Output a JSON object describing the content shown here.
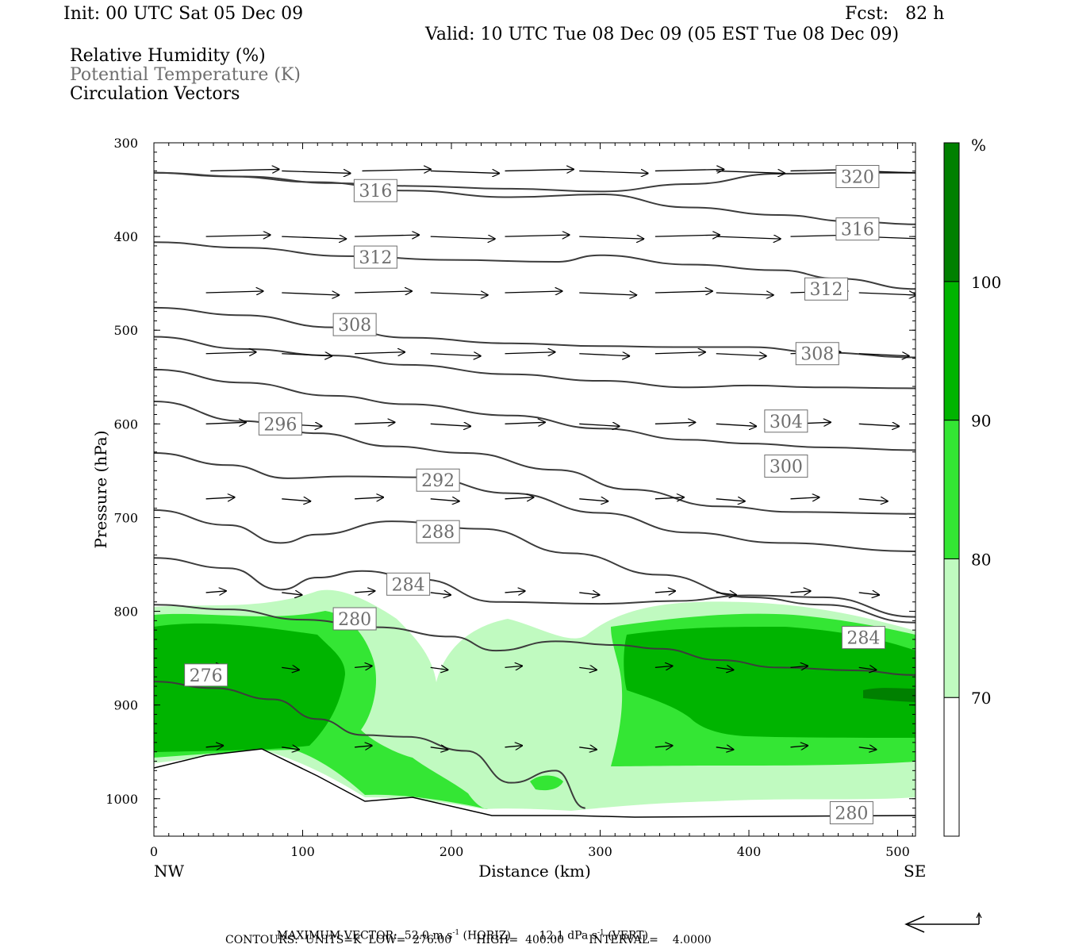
{
  "header": {
    "init": "Init: 00 UTC Sat 05 Dec 09",
    "fcst": "Fcst:   82 h",
    "valid": "Valid: 10 UTC Tue 08 Dec 09 (05 EST Tue 08 Dec 09)",
    "legend_lines": [
      "Relative Humidity (%)",
      "Potential Temperature (K)",
      "Circulation Vectors"
    ]
  },
  "footer": {
    "max_vector_prefix": "MAXIMUM VECTOR:  52.0 m s",
    "max_vector_mid": " (HORIZ)        12.1 dPa s",
    "max_vector_end": " (VERT)",
    "superscript": "-1",
    "contours": "CONTOURS:  UNITS=K  LOW=  276.00       HIGH=  400.00       INTERVAL=    4.0000"
  },
  "chart_data": {
    "type": "cross-section",
    "ylabel": "Pressure (hPa)",
    "xlabel": "Distance (km)",
    "x_left_label": "NW",
    "x_right_label": "SE",
    "xlim": [
      0,
      512
    ],
    "ylim": [
      1040,
      300
    ],
    "x_ticks": [
      0,
      100,
      200,
      300,
      400,
      500
    ],
    "y_ticks": [
      300,
      400,
      500,
      600,
      700,
      800,
      900,
      1000
    ],
    "colorbar": {
      "unit": "%",
      "levels": [
        70,
        80,
        90,
        100
      ],
      "colors": [
        "#ffffff",
        "#c0fac0",
        "#34e634",
        "#00b400",
        "#008000"
      ]
    },
    "theta_contours": [
      {
        "value": 320,
        "points": [
          [
            0,
            332
          ],
          [
            60,
            336
          ],
          [
            120,
            343
          ],
          [
            170,
            346
          ],
          [
            240,
            349
          ],
          [
            300,
            352
          ],
          [
            360,
            344
          ],
          [
            420,
            333
          ],
          [
            470,
            332
          ],
          [
            512,
            332
          ]
        ]
      },
      {
        "value": 316,
        "points": [
          [
            0,
            332
          ],
          [
            50,
            336
          ],
          [
            110,
            342
          ],
          [
            170,
            351
          ],
          [
            240,
            358
          ],
          [
            300,
            355
          ],
          [
            360,
            369
          ],
          [
            420,
            377
          ],
          [
            470,
            384
          ],
          [
            512,
            387
          ]
        ]
      },
      {
        "value": 312,
        "points": [
          [
            0,
            406
          ],
          [
            60,
            412
          ],
          [
            130,
            421
          ],
          [
            200,
            425
          ],
          [
            270,
            427
          ],
          [
            300,
            420
          ],
          [
            360,
            430
          ],
          [
            420,
            436
          ],
          [
            460,
            445
          ],
          [
            512,
            456
          ]
        ]
      },
      {
        "value": 308,
        "points": [
          [
            0,
            476
          ],
          [
            60,
            484
          ],
          [
            120,
            497
          ],
          [
            170,
            508
          ],
          [
            240,
            514
          ],
          [
            300,
            517
          ],
          [
            350,
            518
          ],
          [
            400,
            518
          ],
          [
            450,
            524
          ],
          [
            512,
            529
          ]
        ]
      },
      {
        "value": 304,
        "points": [
          [
            0,
            507
          ],
          [
            60,
            520
          ],
          [
            120,
            527
          ],
          [
            170,
            537
          ],
          [
            240,
            547
          ],
          [
            300,
            554
          ],
          [
            360,
            561
          ],
          [
            400,
            559
          ],
          [
            450,
            561
          ],
          [
            512,
            562
          ]
        ]
      },
      {
        "value": 300,
        "points": [
          [
            0,
            542
          ],
          [
            60,
            556
          ],
          [
            120,
            570
          ],
          [
            170,
            579
          ],
          [
            240,
            591
          ],
          [
            300,
            605
          ],
          [
            360,
            617
          ],
          [
            400,
            621
          ],
          [
            450,
            625
          ],
          [
            512,
            628
          ]
        ]
      },
      {
        "value": 296,
        "points": [
          [
            0,
            576
          ],
          [
            60,
            597
          ],
          [
            110,
            610
          ],
          [
            160,
            624
          ],
          [
            210,
            631
          ],
          [
            270,
            649
          ],
          [
            320,
            670
          ],
          [
            380,
            688
          ],
          [
            430,
            694
          ],
          [
            512,
            696
          ]
        ]
      },
      {
        "value": 292,
        "points": [
          [
            0,
            631
          ],
          [
            50,
            644
          ],
          [
            90,
            658
          ],
          [
            130,
            656
          ],
          [
            180,
            657
          ],
          [
            240,
            674
          ],
          [
            300,
            695
          ],
          [
            360,
            716
          ],
          [
            420,
            727
          ],
          [
            512,
            736
          ]
        ]
      },
      {
        "value": 288,
        "points": [
          [
            0,
            692
          ],
          [
            50,
            708
          ],
          [
            85,
            727
          ],
          [
            110,
            718
          ],
          [
            160,
            704
          ],
          [
            220,
            712
          ],
          [
            280,
            738
          ],
          [
            340,
            761
          ],
          [
            400,
            785
          ],
          [
            450,
            793
          ],
          [
            512,
            812
          ]
        ]
      },
      {
        "value": 284,
        "points": [
          [
            0,
            743
          ],
          [
            50,
            754
          ],
          [
            85,
            777
          ],
          [
            110,
            764
          ],
          [
            140,
            757
          ],
          [
            180,
            766
          ],
          [
            230,
            790
          ],
          [
            300,
            792
          ],
          [
            350,
            789
          ],
          [
            400,
            783
          ],
          [
            450,
            785
          ],
          [
            512,
            806
          ]
        ]
      },
      {
        "value": 280,
        "points": [
          [
            0,
            793
          ],
          [
            50,
            798
          ],
          [
            100,
            809
          ],
          [
            150,
            817
          ],
          [
            200,
            827
          ],
          [
            230,
            842
          ],
          [
            270,
            832
          ],
          [
            310,
            836
          ],
          [
            340,
            840
          ],
          [
            380,
            852
          ],
          [
            420,
            860
          ],
          [
            470,
            863
          ],
          [
            512,
            868
          ]
        ]
      },
      {
        "value": 276,
        "points": [
          [
            0,
            875
          ],
          [
            40,
            882
          ],
          [
            80,
            894
          ],
          [
            110,
            915
          ],
          [
            140,
            932
          ],
          [
            170,
            934
          ],
          [
            210,
            949
          ],
          [
            240,
            983
          ],
          [
            270,
            970
          ],
          [
            290,
            1010
          ]
        ]
      }
    ],
    "contour_labels": [
      {
        "text": "320",
        "x": 473,
        "p": 336
      },
      {
        "text": "316",
        "x": 149,
        "p": 351
      },
      {
        "text": "316",
        "x": 473,
        "p": 392
      },
      {
        "text": "312",
        "x": 149,
        "p": 422
      },
      {
        "text": "312",
        "x": 452,
        "p": 456
      },
      {
        "text": "308",
        "x": 135,
        "p": 494
      },
      {
        "text": "308",
        "x": 446,
        "p": 525
      },
      {
        "text": "304",
        "x": 425,
        "p": 597
      },
      {
        "text": "300",
        "x": 425,
        "p": 645
      },
      {
        "text": "296",
        "x": 85,
        "p": 600
      },
      {
        "text": "292",
        "x": 191,
        "p": 660
      },
      {
        "text": "288",
        "x": 191,
        "p": 715
      },
      {
        "text": "284",
        "x": 171,
        "p": 771
      },
      {
        "text": "284",
        "x": 477,
        "p": 828
      },
      {
        "text": "280",
        "x": 135,
        "p": 808
      },
      {
        "text": "280",
        "x": 469,
        "p": 1015
      },
      {
        "text": "276",
        "x": 35,
        "p": 868
      }
    ],
    "vector_rows": [
      {
        "p": 330,
        "u": [
          48,
          48,
          48,
          48,
          48,
          48,
          48,
          48,
          48,
          48
        ],
        "xs": [
          38,
          86,
          140,
          186,
          236,
          286,
          337,
          378,
          428,
          474
        ]
      },
      {
        "p": 400,
        "u": [
          45,
          45,
          45,
          45,
          45,
          45,
          45,
          45,
          45,
          45
        ],
        "xs": [
          35,
          86,
          135,
          186,
          236,
          286,
          337,
          378,
          428,
          474
        ]
      },
      {
        "p": 460,
        "u": [
          40,
          40,
          40,
          40,
          40,
          40,
          40,
          40,
          40,
          40
        ],
        "xs": [
          35,
          86,
          135,
          186,
          236,
          286,
          337,
          378,
          428,
          474
        ]
      },
      {
        "p": 525,
        "u": [
          35,
          35,
          35,
          35,
          35,
          35,
          35,
          35,
          35,
          35
        ],
        "xs": [
          35,
          86,
          135,
          186,
          236,
          286,
          337,
          378,
          428,
          474
        ]
      },
      {
        "p": 600,
        "u": [
          28,
          28,
          28,
          28,
          28,
          28,
          28,
          28,
          28,
          28
        ],
        "xs": [
          35,
          86,
          135,
          186,
          236,
          286,
          337,
          378,
          428,
          474
        ]
      },
      {
        "p": 680,
        "u": [
          20,
          20,
          20,
          20,
          20,
          20,
          20,
          20,
          20,
          20
        ],
        "xs": [
          35,
          86,
          135,
          186,
          236,
          286,
          337,
          378,
          428,
          474
        ]
      },
      {
        "p": 780,
        "u": [
          14,
          14,
          14,
          14,
          14,
          14,
          14,
          14,
          14,
          14
        ],
        "xs": [
          35,
          86,
          135,
          186,
          236,
          286,
          337,
          378,
          428,
          474
        ]
      },
      {
        "p": 860,
        "u": [
          12,
          12,
          12,
          12,
          12,
          12,
          12,
          12,
          12,
          12
        ],
        "xs": [
          35,
          86,
          135,
          186,
          236,
          286,
          337,
          378,
          428,
          474
        ]
      },
      {
        "p": 945,
        "u": [
          12,
          12,
          12,
          12,
          12,
          12,
          12,
          12,
          12,
          12
        ],
        "xs": [
          35,
          86,
          135,
          186,
          236,
          286,
          337,
          378,
          428,
          474
        ]
      }
    ]
  }
}
